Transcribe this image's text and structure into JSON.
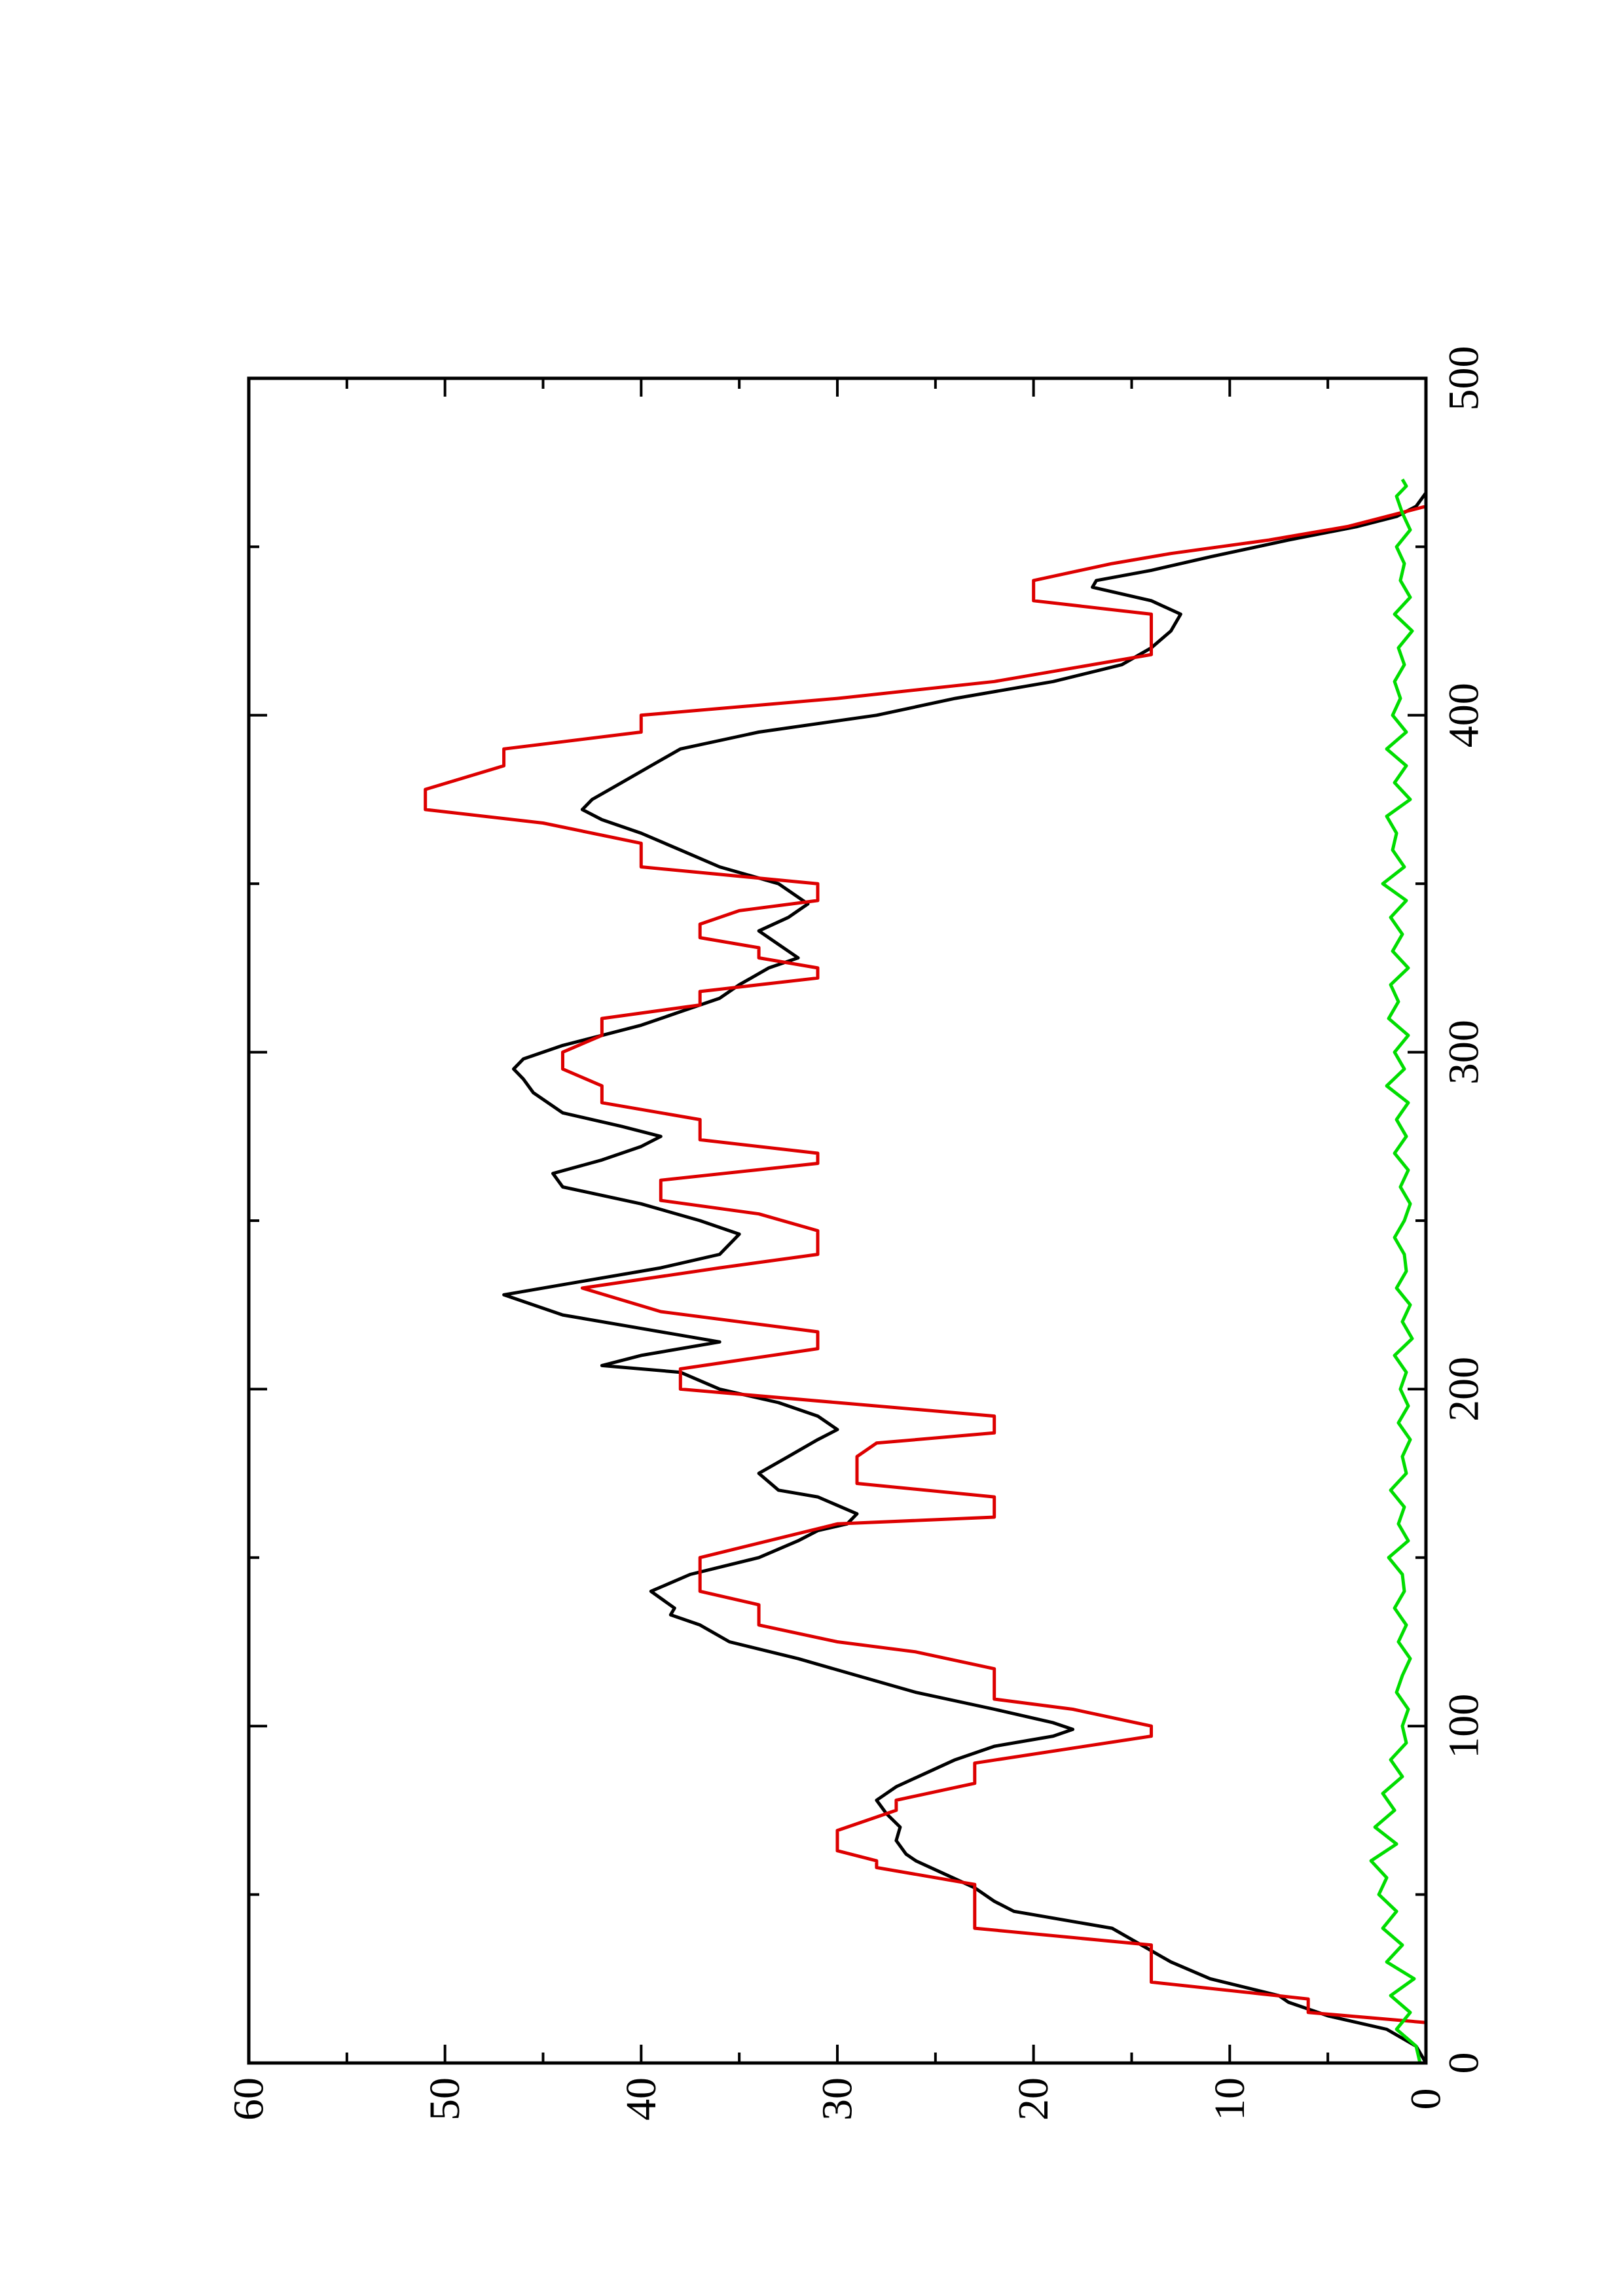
{
  "chart_data": {
    "type": "line",
    "title": "",
    "xlabel": "",
    "ylabel": "",
    "rotated_page": true,
    "xlim": [
      0,
      500
    ],
    "ylim": [
      0,
      60
    ],
    "x_ticks": [
      "0",
      "100",
      "200",
      "300",
      "400",
      "500"
    ],
    "y_ticks": [
      "0",
      "10",
      "20",
      "30",
      "40",
      "50",
      "60"
    ],
    "x_minor_step": 50,
    "y_minor_step": 5,
    "grid": false,
    "legend": "none",
    "colors": {
      "black": "#000000",
      "red": "#dd0000",
      "green": "#00dd00",
      "axes": "#000000"
    },
    "series": [
      {
        "color": "black",
        "points": [
          [
            0,
            0
          ],
          [
            5,
            0.5
          ],
          [
            10,
            2
          ],
          [
            14,
            5
          ],
          [
            18,
            7
          ],
          [
            20,
            7.5
          ],
          [
            25,
            11
          ],
          [
            30,
            13
          ],
          [
            35,
            14.5
          ],
          [
            40,
            16
          ],
          [
            42,
            18
          ],
          [
            45,
            21
          ],
          [
            48,
            22
          ],
          [
            52,
            23
          ],
          [
            56,
            24.5
          ],
          [
            60,
            26
          ],
          [
            62,
            26.5
          ],
          [
            66,
            27
          ],
          [
            70,
            26.8
          ],
          [
            74,
            27.5
          ],
          [
            78,
            28
          ],
          [
            82,
            27
          ],
          [
            86,
            25.5
          ],
          [
            90,
            24
          ],
          [
            94,
            22
          ],
          [
            97,
            19
          ],
          [
            99,
            18
          ],
          [
            101,
            19
          ],
          [
            105,
            22
          ],
          [
            110,
            26
          ],
          [
            115,
            29
          ],
          [
            120,
            32
          ],
          [
            125,
            35.5
          ],
          [
            130,
            37
          ],
          [
            133,
            38.5
          ],
          [
            135,
            38.3
          ],
          [
            140,
            39.5
          ],
          [
            145,
            37.5
          ],
          [
            150,
            34
          ],
          [
            155,
            32
          ],
          [
            158,
            31
          ],
          [
            160,
            29.5
          ],
          [
            163,
            29
          ],
          [
            168,
            31
          ],
          [
            170,
            33
          ],
          [
            175,
            34
          ],
          [
            180,
            32.5
          ],
          [
            185,
            31
          ],
          [
            188,
            30
          ],
          [
            192,
            31
          ],
          [
            196,
            33
          ],
          [
            200,
            36
          ],
          [
            205,
            38
          ],
          [
            207,
            42
          ],
          [
            210,
            40
          ],
          [
            214,
            36
          ],
          [
            218,
            40
          ],
          [
            222,
            44
          ],
          [
            228,
            47
          ],
          [
            232,
            43
          ],
          [
            236,
            39
          ],
          [
            240,
            36
          ],
          [
            246,
            35
          ],
          [
            250,
            37
          ],
          [
            255,
            40
          ],
          [
            260,
            44
          ],
          [
            264,
            44.5
          ],
          [
            268,
            42
          ],
          [
            272,
            40
          ],
          [
            275,
            39
          ],
          [
            278,
            41
          ],
          [
            282,
            44
          ],
          [
            288,
            45.5
          ],
          [
            292,
            46
          ],
          [
            295,
            46.5
          ],
          [
            298,
            46
          ],
          [
            302,
            44
          ],
          [
            305,
            42
          ],
          [
            308,
            40
          ],
          [
            312,
            38
          ],
          [
            316,
            36
          ],
          [
            320,
            35
          ],
          [
            325,
            33.5
          ],
          [
            328,
            32
          ],
          [
            332,
            33
          ],
          [
            336,
            34
          ],
          [
            340,
            32.5
          ],
          [
            344,
            31.5
          ],
          [
            350,
            33
          ],
          [
            355,
            36
          ],
          [
            360,
            38
          ],
          [
            365,
            40
          ],
          [
            369,
            42
          ],
          [
            372,
            43
          ],
          [
            375,
            42.5
          ],
          [
            380,
            41
          ],
          [
            385,
            39.5
          ],
          [
            390,
            38
          ],
          [
            395,
            34
          ],
          [
            400,
            28
          ],
          [
            405,
            24
          ],
          [
            410,
            19
          ],
          [
            415,
            15.5
          ],
          [
            420,
            14
          ],
          [
            425,
            13
          ],
          [
            430,
            12.5
          ],
          [
            434,
            14
          ],
          [
            438,
            17
          ],
          [
            440,
            16.8
          ],
          [
            443,
            14
          ],
          [
            447,
            11
          ],
          [
            452,
            7
          ],
          [
            456,
            3.5
          ],
          [
            459,
            1.5
          ],
          [
            462,
            0.5
          ],
          [
            466,
            0
          ],
          [
            470,
            0
          ]
        ]
      },
      {
        "color": "red",
        "points": [
          [
            0,
            0
          ],
          [
            12,
            0
          ],
          [
            15,
            6
          ],
          [
            19,
            6
          ],
          [
            24,
            14
          ],
          [
            35,
            14
          ],
          [
            40,
            23
          ],
          [
            53,
            23
          ],
          [
            58,
            28
          ],
          [
            60,
            28
          ],
          [
            63,
            30
          ],
          [
            69,
            30
          ],
          [
            75,
            27
          ],
          [
            78,
            27
          ],
          [
            83,
            23
          ],
          [
            89,
            23
          ],
          [
            97,
            14
          ],
          [
            100,
            14
          ],
          [
            105,
            18
          ],
          [
            108,
            22
          ],
          [
            117,
            22
          ],
          [
            122,
            26
          ],
          [
            125,
            30
          ],
          [
            130,
            34
          ],
          [
            136,
            34
          ],
          [
            140,
            37
          ],
          [
            150,
            37
          ],
          [
            160,
            30
          ],
          [
            162,
            22
          ],
          [
            168,
            22
          ],
          [
            172,
            29
          ],
          [
            180,
            29
          ],
          [
            184,
            28
          ],
          [
            187,
            22
          ],
          [
            192,
            22
          ],
          [
            196,
            30
          ],
          [
            200,
            38
          ],
          [
            206,
            38
          ],
          [
            212,
            31
          ],
          [
            217,
            31
          ],
          [
            223,
            39
          ],
          [
            230,
            43
          ],
          [
            236,
            36
          ],
          [
            240,
            31
          ],
          [
            247,
            31
          ],
          [
            252,
            34
          ],
          [
            256,
            39
          ],
          [
            262,
            39
          ],
          [
            267,
            31
          ],
          [
            270,
            31
          ],
          [
            274,
            37
          ],
          [
            280,
            37
          ],
          [
            285,
            42
          ],
          [
            290,
            42
          ],
          [
            295,
            44
          ],
          [
            300,
            44
          ],
          [
            305,
            42
          ],
          [
            310,
            42
          ],
          [
            314,
            37
          ],
          [
            318,
            37
          ],
          [
            322,
            31
          ],
          [
            325,
            31
          ],
          [
            328,
            34
          ],
          [
            331,
            34
          ],
          [
            334,
            37
          ],
          [
            338,
            37
          ],
          [
            342,
            35
          ],
          [
            345,
            31
          ],
          [
            350,
            31
          ],
          [
            355,
            40
          ],
          [
            362,
            40
          ],
          [
            368,
            45
          ],
          [
            372,
            51
          ],
          [
            378,
            51
          ],
          [
            385,
            47
          ],
          [
            390,
            47
          ],
          [
            395,
            40
          ],
          [
            400,
            40
          ],
          [
            405,
            30
          ],
          [
            410,
            22
          ],
          [
            418,
            14
          ],
          [
            430,
            14
          ],
          [
            434,
            20
          ],
          [
            440,
            20
          ],
          [
            445,
            16
          ],
          [
            448,
            13
          ],
          [
            452,
            8
          ],
          [
            456,
            4
          ],
          [
            459,
            2
          ],
          [
            462,
            0
          ],
          [
            470,
            0
          ]
        ]
      },
      {
        "color": "green",
        "points": [
          [
            0,
            0.3
          ],
          [
            5,
            0.5
          ],
          [
            10,
            1.5
          ],
          [
            15,
            0.8
          ],
          [
            20,
            1.8
          ],
          [
            25,
            0.6
          ],
          [
            30,
            2.0
          ],
          [
            35,
            1.2
          ],
          [
            40,
            2.2
          ],
          [
            45,
            1.5
          ],
          [
            50,
            2.4
          ],
          [
            55,
            2.0
          ],
          [
            60,
            2.8
          ],
          [
            65,
            1.5
          ],
          [
            70,
            2.6
          ],
          [
            75,
            1.6
          ],
          [
            80,
            2.2
          ],
          [
            85,
            1.2
          ],
          [
            90,
            1.8
          ],
          [
            95,
            1.0
          ],
          [
            100,
            1.2
          ],
          [
            105,
            0.9
          ],
          [
            110,
            1.5
          ],
          [
            115,
            1.2
          ],
          [
            120,
            0.8
          ],
          [
            125,
            1.4
          ],
          [
            130,
            1.0
          ],
          [
            135,
            1.6
          ],
          [
            140,
            1.1
          ],
          [
            145,
            1.2
          ],
          [
            150,
            1.9
          ],
          [
            155,
            0.9
          ],
          [
            160,
            1.4
          ],
          [
            165,
            1.1
          ],
          [
            170,
            1.8
          ],
          [
            175,
            1.0
          ],
          [
            180,
            1.2
          ],
          [
            185,
            0.8
          ],
          [
            190,
            1.4
          ],
          [
            195,
            0.9
          ],
          [
            200,
            1.3
          ],
          [
            205,
            1.0
          ],
          [
            210,
            1.6
          ],
          [
            215,
            0.7
          ],
          [
            220,
            1.2
          ],
          [
            225,
            0.8
          ],
          [
            230,
            1.5
          ],
          [
            235,
            1.0
          ],
          [
            240,
            1.1
          ],
          [
            245,
            1.6
          ],
          [
            250,
            1.1
          ],
          [
            255,
            0.8
          ],
          [
            260,
            1.3
          ],
          [
            265,
            0.9
          ],
          [
            270,
            1.6
          ],
          [
            275,
            1.0
          ],
          [
            280,
            1.5
          ],
          [
            285,
            0.9
          ],
          [
            290,
            2.0
          ],
          [
            295,
            1.1
          ],
          [
            300,
            1.6
          ],
          [
            305,
            0.9
          ],
          [
            310,
            1.9
          ],
          [
            315,
            1.4
          ],
          [
            320,
            1.8
          ],
          [
            325,
            0.9
          ],
          [
            330,
            1.7
          ],
          [
            335,
            1.2
          ],
          [
            340,
            1.8
          ],
          [
            345,
            1.0
          ],
          [
            350,
            2.2
          ],
          [
            355,
            1.1
          ],
          [
            360,
            1.7
          ],
          [
            365,
            1.5
          ],
          [
            370,
            2.0
          ],
          [
            375,
            0.8
          ],
          [
            380,
            1.6
          ],
          [
            385,
            1.0
          ],
          [
            390,
            2.0
          ],
          [
            395,
            1.0
          ],
          [
            400,
            1.7
          ],
          [
            405,
            1.3
          ],
          [
            410,
            1.6
          ],
          [
            415,
            1.1
          ],
          [
            420,
            1.4
          ],
          [
            425,
            0.7
          ],
          [
            430,
            1.6
          ],
          [
            435,
            0.8
          ],
          [
            440,
            1.3
          ],
          [
            445,
            1.1
          ],
          [
            450,
            1.5
          ],
          [
            455,
            0.8
          ],
          [
            460,
            1.2
          ],
          [
            465,
            1.5
          ],
          [
            468,
            1.0
          ],
          [
            470,
            1.2
          ]
        ]
      }
    ]
  }
}
